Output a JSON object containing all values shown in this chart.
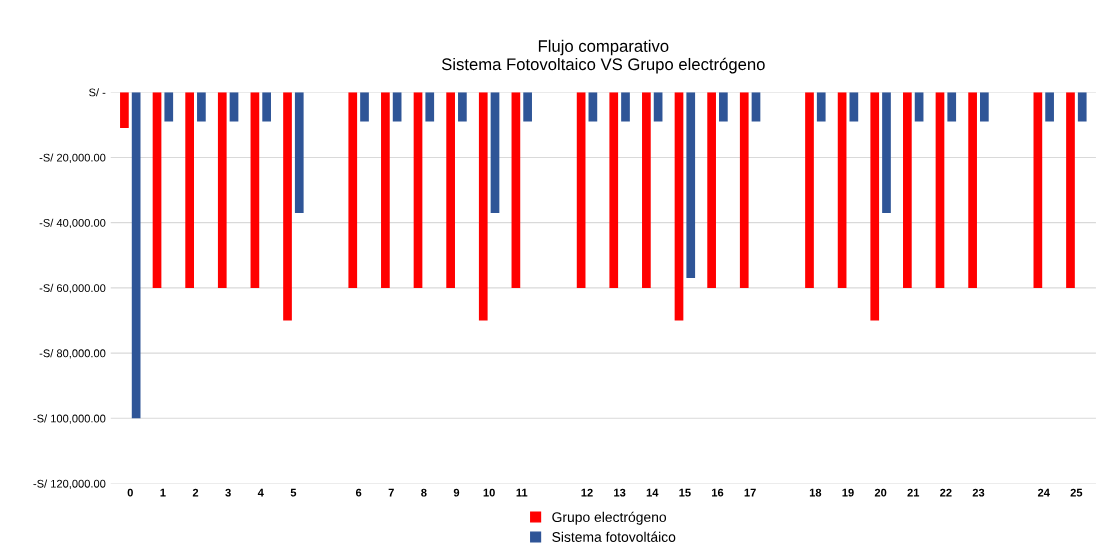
{
  "chart_data": {
    "type": "bar",
    "title": "Flujo comparativo\nSistema Fotovoltaico VS Grupo electrógeno",
    "categories": [
      "0",
      "1",
      "2",
      "3",
      "4",
      "5",
      null,
      "6",
      "7",
      "8",
      "9",
      "10",
      "11",
      null,
      "12",
      "13",
      "14",
      "15",
      "16",
      "17",
      null,
      "18",
      "19",
      "20",
      "21",
      "22",
      "23",
      null,
      "24",
      "25"
    ],
    "series": [
      {
        "name": "Grupo electrógeno",
        "color": "#ff0000",
        "values": [
          -11000,
          -60000,
          -60000,
          -60000,
          -60000,
          -70000,
          null,
          -60000,
          -60000,
          -60000,
          -60000,
          -70000,
          -60000,
          null,
          -60000,
          -60000,
          -60000,
          -70000,
          -60000,
          -60000,
          null,
          -60000,
          -60000,
          -70000,
          -60000,
          -60000,
          -60000,
          null,
          -60000,
          -60000
        ]
      },
      {
        "name": "Sistema fotovoltáico",
        "color": "#2f5597",
        "values": [
          -100000,
          -9000,
          -9000,
          -9000,
          -9000,
          -37000,
          null,
          -9000,
          -9000,
          -9000,
          -9000,
          -37000,
          -9000,
          null,
          -9000,
          -9000,
          -9000,
          -57000,
          -9000,
          -9000,
          null,
          -9000,
          -9000,
          -37000,
          -9000,
          -9000,
          -9000,
          null,
          -9000,
          -9000
        ]
      }
    ],
    "ylim": [
      -120000,
      0
    ],
    "yticks": [
      {
        "value": 0,
        "label": "S/ -"
      },
      {
        "value": -20000,
        "label": "-S/ 20,000.00"
      },
      {
        "value": -40000,
        "label": "-S/ 40,000.00"
      },
      {
        "value": -60000,
        "label": "-S/ 60,000.00"
      },
      {
        "value": -80000,
        "label": "-S/ 80,000.00"
      },
      {
        "value": -100000,
        "label": "-S/ 100,000.00"
      },
      {
        "value": -120000,
        "label": "-S/ 120,000.00"
      }
    ],
    "grid": "y",
    "legend": "bottom"
  }
}
